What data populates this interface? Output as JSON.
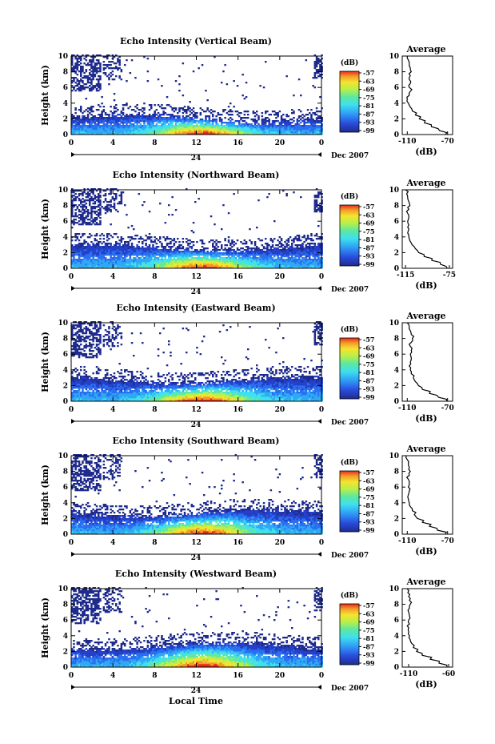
{
  "figure": {
    "time_axis_label": "Local Time",
    "date_label": "Dec 2007",
    "date_day": "24",
    "colorbar_unit": "(dB)",
    "colorbar_ticks": [
      "-57",
      "-63",
      "-69",
      "-75",
      "-81",
      "-87",
      "-93",
      "-99"
    ],
    "profile_title": "Average",
    "profile_xlabel": "(dB)"
  },
  "chart_data": [
    {
      "type": "heatmap",
      "title": "Echo Intensity (Vertical Beam)",
      "ylabel": "Height (km)",
      "xlabel": "Local Time",
      "x_ticks": [
        "0",
        "4",
        "8",
        "12",
        "16",
        "20",
        "0"
      ],
      "y_ticks": [
        "0",
        "2",
        "4",
        "6",
        "8",
        "10"
      ],
      "xlim": [
        0,
        24
      ],
      "ylim": [
        0,
        10
      ],
      "colorbar": {
        "unit": "(dB)",
        "range": [
          -99,
          -57
        ]
      },
      "profile": {
        "title": "Average",
        "xlabel": "(dB)",
        "x_ticks": [
          "-110",
          "-70"
        ],
        "xlim": [
          -115,
          -65
        ],
        "height": [
          0,
          0.5,
          1,
          1.5,
          2,
          2.5,
          3,
          3.5,
          4,
          4.5,
          5,
          5.5,
          6,
          6.5,
          7,
          7.5,
          8,
          8.5,
          9,
          9.5,
          10
        ],
        "values": [
          -72,
          -78,
          -86,
          -93,
          -98,
          -102,
          -105,
          -107,
          -109,
          -110,
          -108,
          -107,
          -108,
          -107,
          -108,
          -107,
          -106,
          -107,
          -108,
          -109,
          -110
        ]
      }
    },
    {
      "type": "heatmap",
      "title": "Echo Intensity (Northward Beam)",
      "ylabel": "Height (km)",
      "xlabel": "Local Time",
      "x_ticks": [
        "0",
        "4",
        "8",
        "12",
        "16",
        "20",
        "0"
      ],
      "y_ticks": [
        "0",
        "2",
        "4",
        "6",
        "8",
        "10"
      ],
      "xlim": [
        0,
        24
      ],
      "ylim": [
        0,
        10
      ],
      "colorbar": {
        "unit": "(dB)",
        "range": [
          -99,
          -57
        ]
      },
      "profile": {
        "title": "Average",
        "xlabel": "(dB)",
        "x_ticks": [
          "-115",
          "-75"
        ],
        "xlim": [
          -118,
          -72
        ],
        "height": [
          0,
          0.5,
          1,
          1.5,
          2,
          2.5,
          3,
          3.5,
          4,
          4.5,
          5,
          5.5,
          6,
          6.5,
          7,
          7.5,
          8,
          8.5,
          9,
          9.5,
          10
        ],
        "values": [
          -77,
          -83,
          -91,
          -98,
          -103,
          -106,
          -109,
          -111,
          -112,
          -113,
          -112,
          -112,
          -113,
          -112,
          -113,
          -112,
          -111,
          -112,
          -113,
          -114,
          -115
        ]
      }
    },
    {
      "type": "heatmap",
      "title": "Echo Intensity (Eastward Beam)",
      "ylabel": "Height (km)",
      "xlabel": "Local Time",
      "x_ticks": [
        "0",
        "4",
        "8",
        "12",
        "16",
        "20",
        "0"
      ],
      "y_ticks": [
        "0",
        "2",
        "4",
        "6",
        "8",
        "10"
      ],
      "xlim": [
        0,
        24
      ],
      "ylim": [
        0,
        10
      ],
      "colorbar": {
        "unit": "(dB)",
        "range": [
          -99,
          -57
        ]
      },
      "profile": {
        "title": "Average",
        "xlabel": "(dB)",
        "x_ticks": [
          "-110",
          "-70"
        ],
        "xlim": [
          -115,
          -65
        ],
        "height": [
          0,
          0.5,
          1,
          1.5,
          2,
          2.5,
          3,
          3.5,
          4,
          4.5,
          5,
          5.5,
          6,
          6.5,
          7,
          7.5,
          8,
          8.5,
          9,
          9.5,
          10
        ],
        "values": [
          -71,
          -79,
          -88,
          -95,
          -99,
          -102,
          -104,
          -106,
          -107,
          -108,
          -107,
          -106,
          -107,
          -106,
          -107,
          -106,
          -105,
          -106,
          -107,
          -108,
          -110
        ]
      }
    },
    {
      "type": "heatmap",
      "title": "Echo Intensity (Southward Beam)",
      "ylabel": "Height (km)",
      "xlabel": "Local Time",
      "x_ticks": [
        "0",
        "4",
        "8",
        "12",
        "16",
        "20",
        "0"
      ],
      "y_ticks": [
        "0",
        "2",
        "4",
        "6",
        "8",
        "10"
      ],
      "xlim": [
        0,
        24
      ],
      "ylim": [
        0,
        10
      ],
      "colorbar": {
        "unit": "(dB)",
        "range": [
          -99,
          -57
        ]
      },
      "profile": {
        "title": "Average",
        "xlabel": "(dB)",
        "x_ticks": [
          "-110",
          "-70"
        ],
        "xlim": [
          -115,
          -65
        ],
        "height": [
          0,
          0.5,
          1,
          1.5,
          2,
          2.5,
          3,
          3.5,
          4,
          4.5,
          5,
          5.5,
          6,
          6.5,
          7,
          7.5,
          8,
          8.5,
          9,
          9.5,
          10
        ],
        "values": [
          -72,
          -80,
          -88,
          -95,
          -100,
          -103,
          -105,
          -107,
          -108,
          -109,
          -109,
          -108,
          -109,
          -108,
          -109,
          -108,
          -107,
          -108,
          -109,
          -110,
          -111
        ]
      }
    },
    {
      "type": "heatmap",
      "title": "Echo Intensity (Westward Beam)",
      "ylabel": "Height (km)",
      "xlabel": "Local Time",
      "x_ticks": [
        "0",
        "4",
        "8",
        "12",
        "16",
        "20",
        "0"
      ],
      "y_ticks": [
        "0",
        "2",
        "4",
        "6",
        "8",
        "10"
      ],
      "xlim": [
        0,
        24
      ],
      "ylim": [
        0,
        10
      ],
      "colorbar": {
        "unit": "(dB)",
        "range": [
          -99,
          -57
        ]
      },
      "profile": {
        "title": "Average",
        "xlabel": "(dB)",
        "x_ticks": [
          "-110",
          "-60"
        ],
        "xlim": [
          -118,
          -55
        ],
        "height": [
          0,
          0.5,
          1,
          1.5,
          2,
          2.5,
          3,
          3.5,
          4,
          4.5,
          5,
          5.5,
          6,
          6.5,
          7,
          7.5,
          8,
          8.5,
          9,
          9.5,
          10
        ],
        "values": [
          -62,
          -72,
          -83,
          -93,
          -100,
          -104,
          -106,
          -108,
          -109,
          -110,
          -110,
          -109,
          -110,
          -109,
          -110,
          -109,
          -108,
          -109,
          -110,
          -111,
          -112
        ]
      }
    }
  ]
}
